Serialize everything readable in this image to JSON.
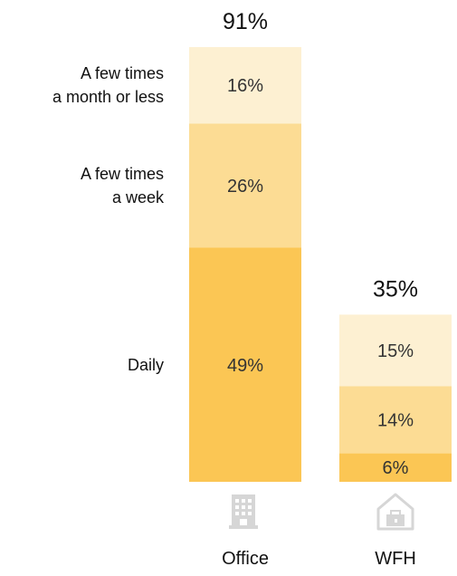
{
  "chart_data": {
    "type": "bar",
    "stacked": true,
    "unit": "%",
    "categories": [
      "Office",
      "WFH"
    ],
    "series": [
      {
        "name": "Daily",
        "values": [
          49,
          6
        ],
        "labels": [
          "49%",
          "6%"
        ],
        "color": "#fbc654"
      },
      {
        "name": "A few times a week",
        "legend_lines": [
          "A few times",
          "a week"
        ],
        "values": [
          26,
          14
        ],
        "labels": [
          "26%",
          "14%"
        ],
        "color": "#fcdc94"
      },
      {
        "name": "A few times a month or less",
        "legend_lines": [
          "A few times",
          "a month or less"
        ],
        "values": [
          16,
          15
        ],
        "labels": [
          "16%",
          "15%"
        ],
        "color": "#fdf0d2"
      }
    ],
    "totals": [
      91,
      35
    ],
    "total_labels": [
      "91%",
      "35%"
    ],
    "icons": [
      "office-building-icon",
      "home-work-icon"
    ],
    "ylim": [
      0,
      91
    ],
    "grid": false,
    "legend": "left"
  }
}
